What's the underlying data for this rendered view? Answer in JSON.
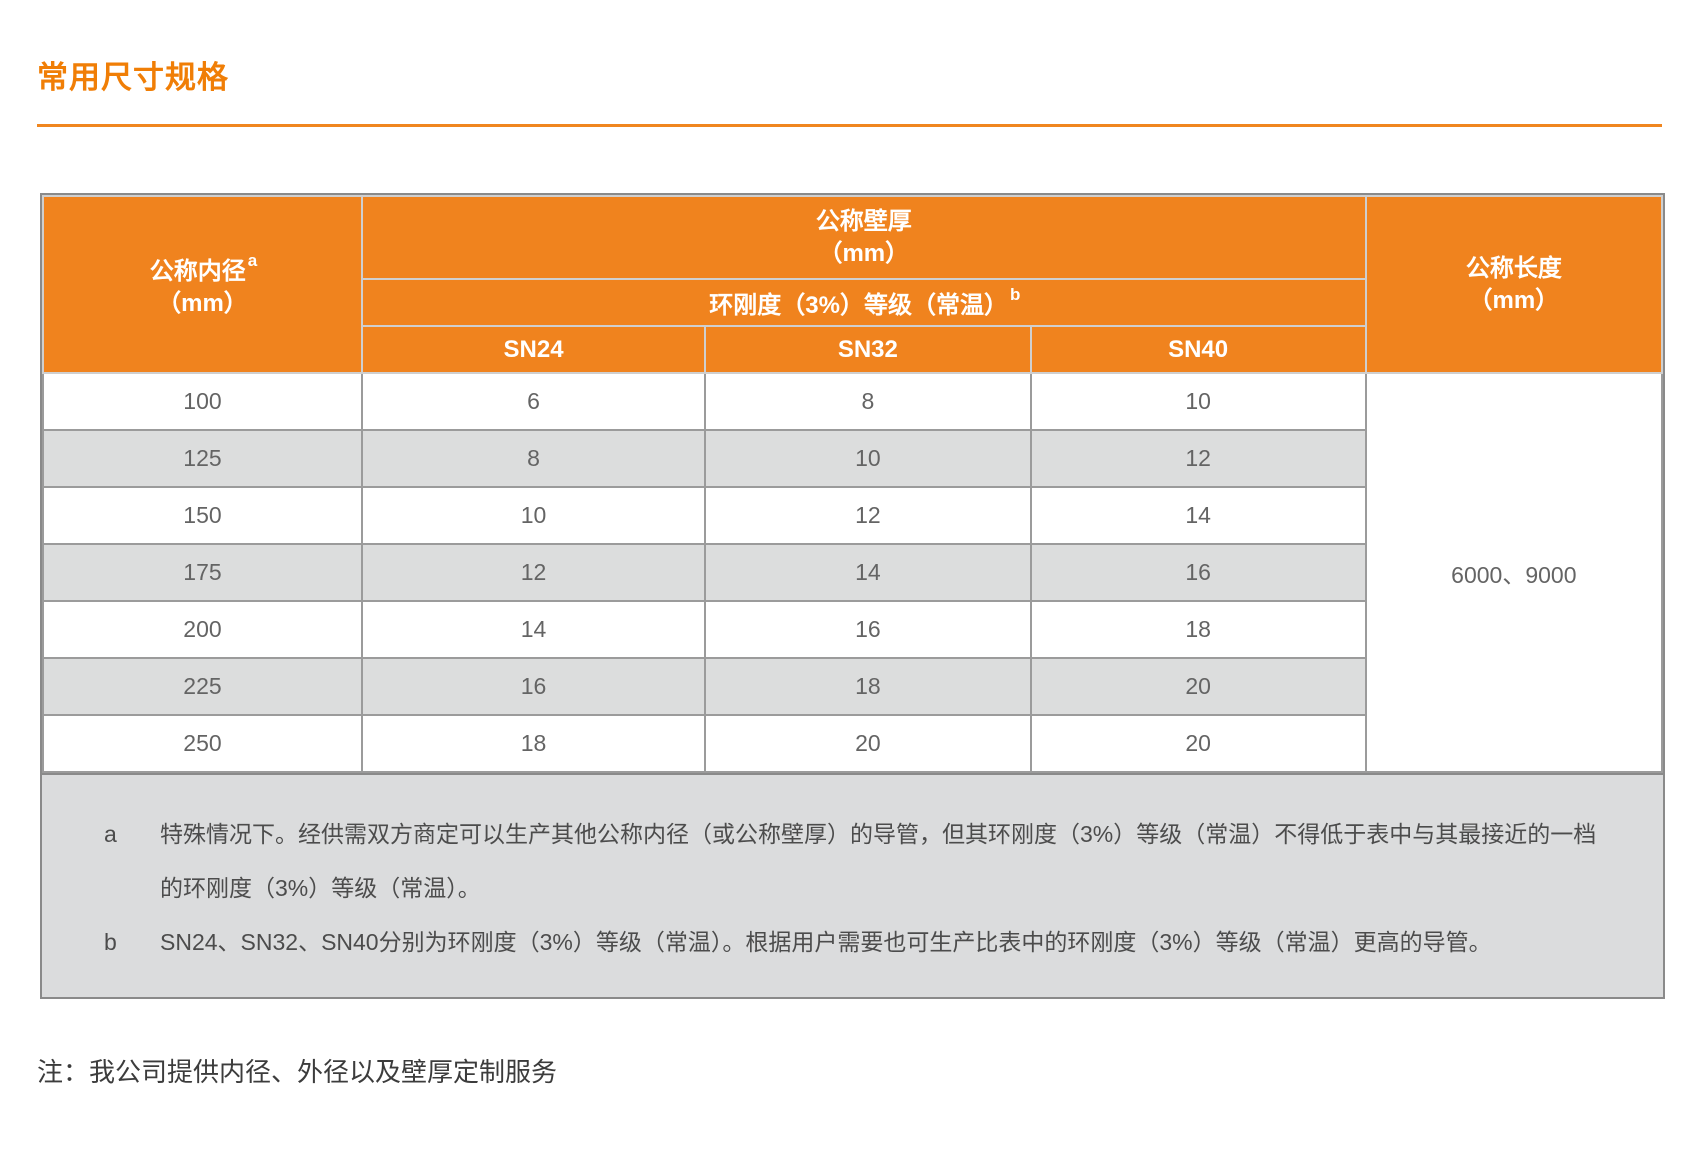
{
  "page": {
    "title": "常用尺寸规格",
    "bottom_note": "注：我公司提供内径、外径以及壁厚定制服务"
  },
  "colors": {
    "accent_orange": "#F0831E",
    "title_orange": "#F07E06",
    "stripe_gray": "#DCDDDD",
    "border_gray": "#9B9B9B",
    "header_text": "#FFFFFF"
  },
  "table": {
    "col_inner_diameter": {
      "title": "公称内径",
      "sup": "a",
      "unit": "（mm）"
    },
    "col_wall_thickness": {
      "title": "公称壁厚",
      "unit": "（mm）"
    },
    "subheader_ring_stiffness": {
      "title": "环刚度（3%）等级（常温）",
      "sup": "b"
    },
    "sn_headers": [
      "SN24",
      "SN32",
      "SN40"
    ],
    "col_length": {
      "title": "公称长度",
      "unit": "（mm）"
    },
    "rows": [
      {
        "diameter": "100",
        "sn24": "6",
        "sn32": "8",
        "sn40": "10"
      },
      {
        "diameter": "125",
        "sn24": "8",
        "sn32": "10",
        "sn40": "12"
      },
      {
        "diameter": "150",
        "sn24": "10",
        "sn32": "12",
        "sn40": "14"
      },
      {
        "diameter": "175",
        "sn24": "12",
        "sn32": "14",
        "sn40": "16"
      },
      {
        "diameter": "200",
        "sn24": "14",
        "sn32": "16",
        "sn40": "18"
      },
      {
        "diameter": "225",
        "sn24": "16",
        "sn32": "18",
        "sn40": "20"
      },
      {
        "diameter": "250",
        "sn24": "18",
        "sn32": "20",
        "sn40": "20"
      }
    ],
    "length_value": "6000、9000"
  },
  "footnotes": [
    {
      "marker": "a",
      "text": "特殊情况下。经供需双方商定可以生产其他公称内径（或公称壁厚）的导管，但其环刚度（3%）等级（常温）不得低于表中与其最接近的一档的环刚度（3%）等级（常温）。"
    },
    {
      "marker": "b",
      "text": "SN24、SN32、SN40分别为环刚度（3%）等级（常温）。根据用户需要也可生产比表中的环刚度（3%）等级（常温）更高的导管。"
    }
  ]
}
